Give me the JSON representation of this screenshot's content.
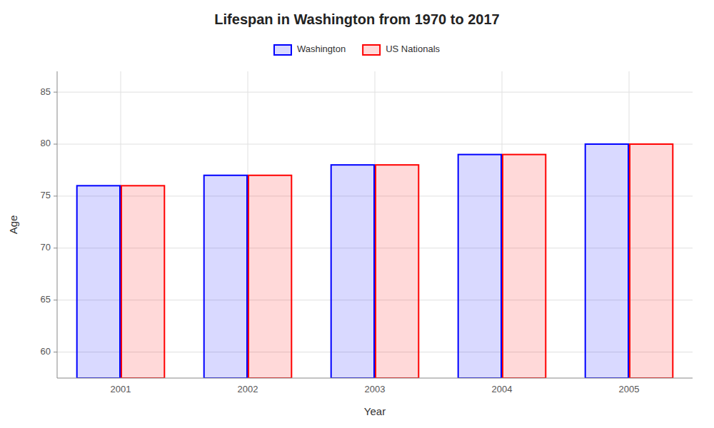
{
  "chart_data": {
    "type": "bar",
    "title": "Lifespan in Washington from 1970 to 2017",
    "x_label": "Year",
    "y_label": "Age",
    "categories": [
      "2001",
      "2002",
      "2003",
      "2004",
      "2005"
    ],
    "series": [
      {
        "name": "Washington",
        "color": "#0000ff",
        "values": [
          76,
          77,
          78,
          79,
          80
        ]
      },
      {
        "name": "US Nationals",
        "color": "#ff0000",
        "values": [
          76,
          77,
          78,
          79,
          80
        ]
      }
    ],
    "ylim": [
      57.5,
      87
    ],
    "yticks": [
      60,
      65,
      70,
      75,
      80,
      85
    ],
    "grid": true,
    "legend": "top"
  }
}
